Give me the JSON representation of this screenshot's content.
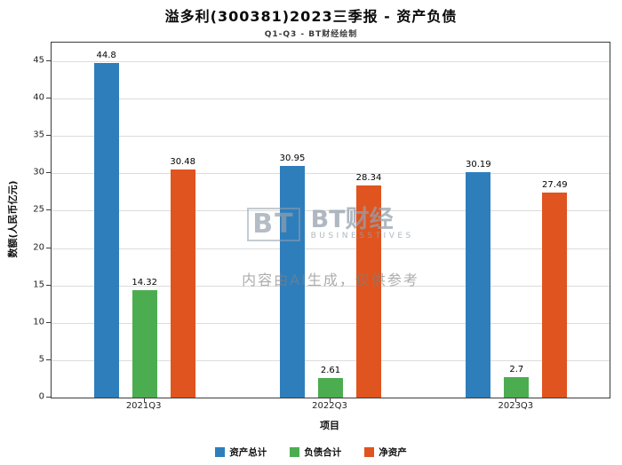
{
  "title": "溢多利(300381)2023三季报 - 资产负债",
  "subtitle": "Q1-Q3 - BT财经绘制",
  "watermark": {
    "logo_icon": "BT",
    "logo_text": "BT财经",
    "logo_sub": "BUSINESSTIVES",
    "disclaimer": "内容由AI生成，仅供参考"
  },
  "chart_data": {
    "type": "bar",
    "categories": [
      "2021Q3",
      "2022Q3",
      "2023Q3"
    ],
    "series": [
      {
        "name": "资产总计",
        "color": "#2e7ebc",
        "values": [
          44.8,
          30.95,
          30.19
        ]
      },
      {
        "name": "负债合计",
        "color": "#4cad50",
        "values": [
          14.32,
          2.61,
          2.7
        ]
      },
      {
        "name": "净资产",
        "color": "#e0541f",
        "values": [
          30.48,
          28.34,
          27.49
        ]
      }
    ],
    "xlabel": "项目",
    "ylabel": "数额(人民币亿元)",
    "ylim": [
      0,
      47.5
    ],
    "yticks": [
      0,
      5,
      10,
      15,
      20,
      25,
      30,
      35,
      40,
      45
    ],
    "grid": true,
    "legend_position": "bottom"
  }
}
